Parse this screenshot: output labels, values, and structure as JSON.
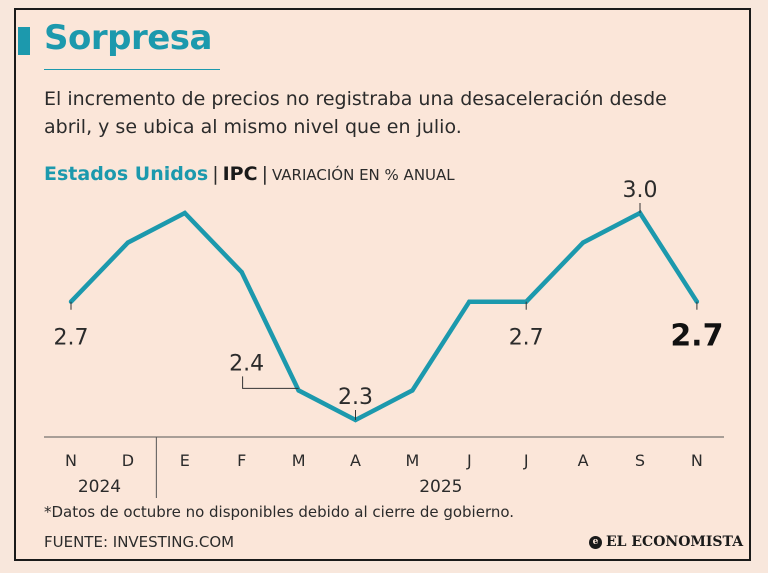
{
  "title": "Sorpresa",
  "subtitle": "El incremento de precios no registraba una desaceleración desde abril, y se ubica al mismo nivel que en julio.",
  "legend": {
    "country": "Estados Unidos",
    "separator": "|",
    "index": "IPC",
    "unit": "VARIACIÓN EN % ANUAL"
  },
  "footnote": "*Datos de octubre no disponibles debido al cierre de gobierno.",
  "source": "FUENTE: INVESTING.COM",
  "brand": "EL ECONOMISTA",
  "colors": {
    "accent": "#1c99ad",
    "text": "#2b2b2b",
    "background": "#fbe6d9"
  },
  "chart_data": {
    "type": "line",
    "title": "Estados Unidos | IPC | VARIACIÓN EN % ANUAL",
    "categories": [
      "N",
      "D",
      "E",
      "F",
      "M",
      "A",
      "M",
      "J",
      "J",
      "A",
      "S",
      "N"
    ],
    "years": [
      {
        "label": "2024",
        "from": 0,
        "to": 1
      },
      {
        "label": "2025",
        "from": 2,
        "to": 11
      }
    ],
    "series": [
      {
        "name": "IPC",
        "values": [
          2.7,
          2.9,
          3.0,
          2.8,
          2.4,
          2.3,
          2.4,
          2.7,
          2.7,
          2.9,
          3.0,
          2.7
        ]
      }
    ],
    "labels": [
      {
        "index": 0,
        "text": "2.7",
        "bold": false
      },
      {
        "index": 4,
        "text": "2.4",
        "bold": false
      },
      {
        "index": 5,
        "text": "2.3",
        "bold": false
      },
      {
        "index": 8,
        "text": "2.7",
        "bold": false
      },
      {
        "index": 10,
        "text": "3.0",
        "bold": false
      },
      {
        "index": 11,
        "text": "2.7",
        "bold": true
      }
    ],
    "ylim": [
      2.3,
      3.0
    ],
    "xlabel": "",
    "ylabel": ""
  }
}
